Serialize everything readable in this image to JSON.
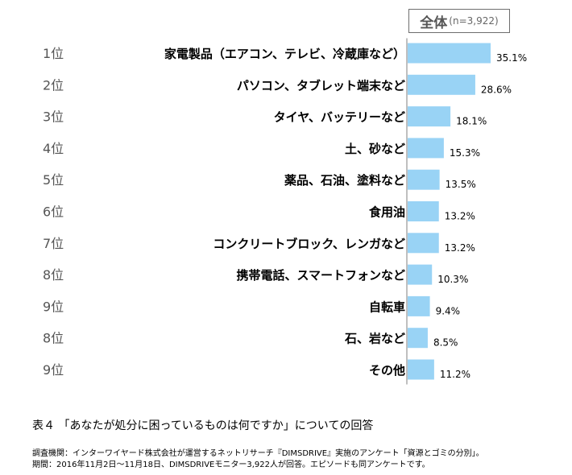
{
  "header": {
    "title": "全体",
    "n_label": "(n=3,922)"
  },
  "chart_data": {
    "type": "bar",
    "orientation": "horizontal",
    "ranks": [
      "1位",
      "2位",
      "3位",
      "4位",
      "5位",
      "6位",
      "7位",
      "8位",
      "9位",
      "8位",
      "9位"
    ],
    "categories": [
      "家電製品（エアコン、テレビ、冷蔵庫など）",
      "パソコン、タブレット端末など",
      "タイヤ、バッテリーなど",
      "土、砂など",
      "薬品、石油、塗料など",
      "食用油",
      "コンクリートブロック、レンガなど",
      "携帯電話、スマートフォンなど",
      "自転車",
      "石、岩など",
      "その他"
    ],
    "values": [
      35.1,
      28.6,
      18.1,
      15.3,
      13.5,
      13.2,
      13.2,
      10.3,
      9.4,
      8.5,
      11.2
    ],
    "value_labels": [
      "35.1%",
      "28.6%",
      "18.1%",
      "15.3%",
      "13.5%",
      "13.2%",
      "13.2%",
      "10.3%",
      "9.4%",
      "8.5%",
      "11.2%"
    ],
    "bar_color": "#99d3f5",
    "xlim": [
      0,
      100
    ],
    "grid": false,
    "legend": "none"
  },
  "caption": "表４ 「あなたが処分に困っているものは何ですか」についての回答",
  "source_lines": [
    "調査機関：インターワイヤード株式会社が運営するネットリサーチ『DIMSDRIVE』実施のアンケート「資源とゴミの分別」。",
    "期間：2016年11月2日～11月18日、DIMSDRIVEモニター3,922人が回答。エピソードも同アンケートです。"
  ]
}
